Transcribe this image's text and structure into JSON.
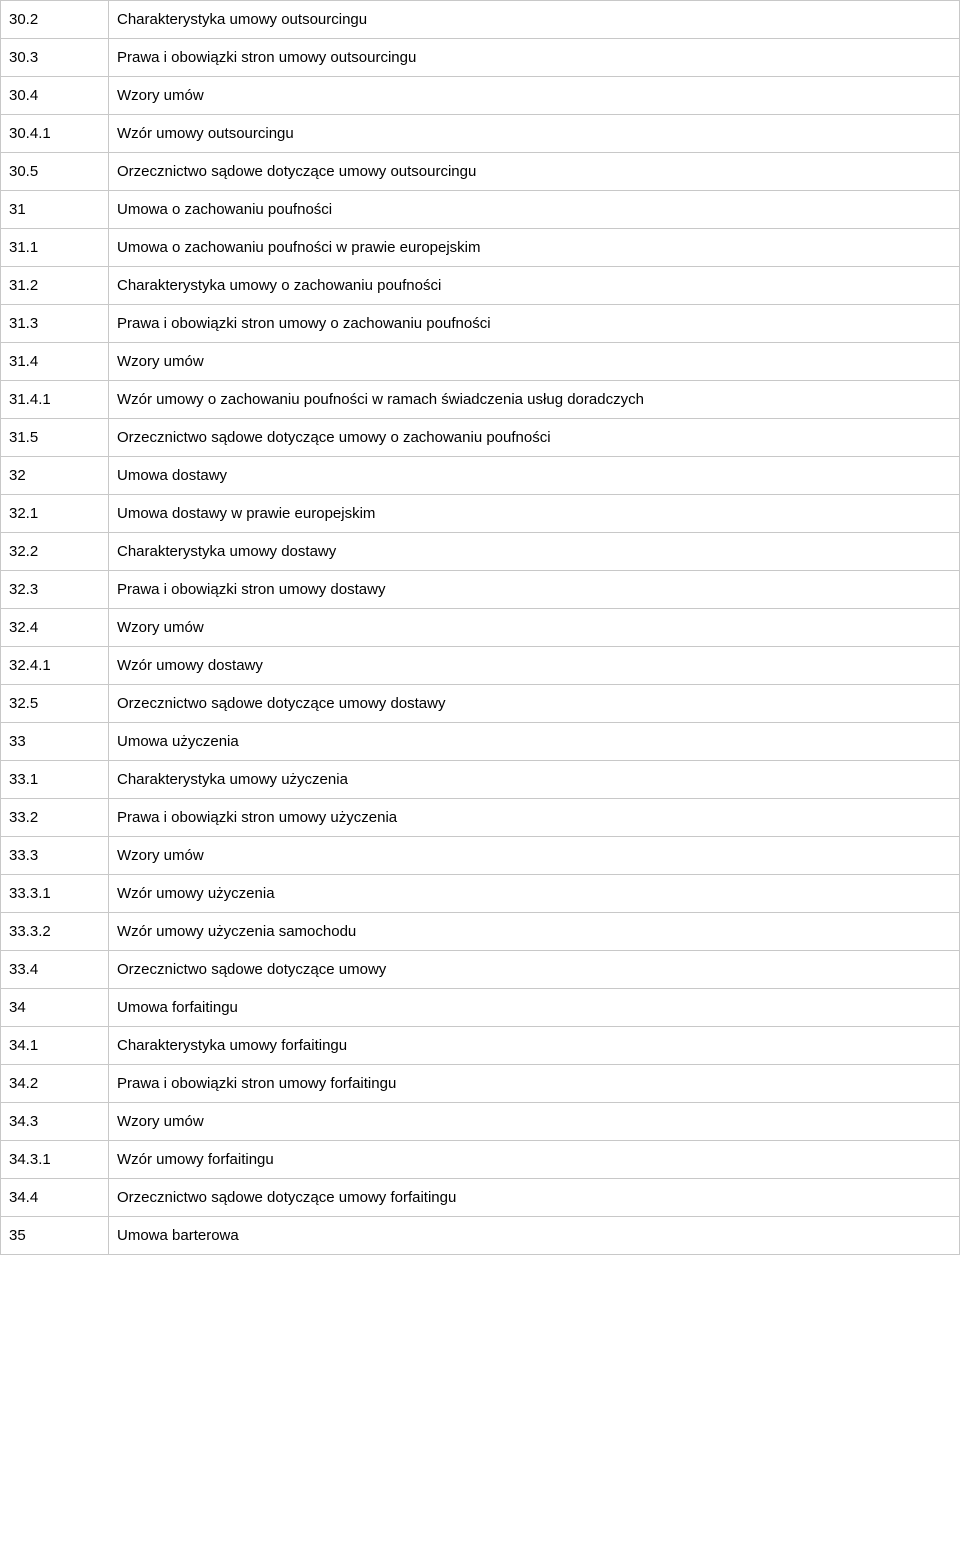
{
  "table": {
    "border_color": "#c8c8c8",
    "background_color": "#ffffff",
    "text_color": "#000000",
    "font_size": 15,
    "num_col_width": 108,
    "rows": [
      {
        "num": "30.2",
        "desc": "Charakterystyka umowy outsourcingu"
      },
      {
        "num": "30.3",
        "desc": "Prawa i obowiązki stron umowy outsourcingu"
      },
      {
        "num": "30.4",
        "desc": "Wzory umów"
      },
      {
        "num": "30.4.1",
        "desc": "Wzór umowy outsourcingu"
      },
      {
        "num": "30.5",
        "desc": "Orzecznictwo sądowe dotyczące umowy outsourcingu"
      },
      {
        "num": "31",
        "desc": "Umowa o zachowaniu poufności"
      },
      {
        "num": "31.1",
        "desc": "Umowa o zachowaniu poufności w prawie europejskim"
      },
      {
        "num": "31.2",
        "desc": "Charakterystyka umowy o zachowaniu poufności"
      },
      {
        "num": "31.3",
        "desc": "Prawa i obowiązki stron umowy o zachowaniu poufności"
      },
      {
        "num": "31.4",
        "desc": "Wzory umów"
      },
      {
        "num": "31.4.1",
        "desc": "Wzór umowy o zachowaniu poufności w ramach świadczenia usług doradczych"
      },
      {
        "num": "31.5",
        "desc": "Orzecznictwo sądowe dotyczące umowy o zachowaniu poufności"
      },
      {
        "num": "32",
        "desc": "Umowa dostawy"
      },
      {
        "num": "32.1",
        "desc": "Umowa dostawy w prawie europejskim"
      },
      {
        "num": "32.2",
        "desc": "Charakterystyka umowy dostawy"
      },
      {
        "num": "32.3",
        "desc": "Prawa i obowiązki stron umowy dostawy"
      },
      {
        "num": "32.4",
        "desc": "Wzory umów"
      },
      {
        "num": "32.4.1",
        "desc": "Wzór umowy dostawy"
      },
      {
        "num": "32.5",
        "desc": "Orzecznictwo sądowe dotyczące umowy dostawy"
      },
      {
        "num": "33",
        "desc": "Umowa użyczenia"
      },
      {
        "num": "33.1",
        "desc": "Charakterystyka umowy użyczenia"
      },
      {
        "num": "33.2",
        "desc": "Prawa i obowiązki stron umowy użyczenia"
      },
      {
        "num": "33.3",
        "desc": "Wzory umów"
      },
      {
        "num": "33.3.1",
        "desc": "Wzór umowy użyczenia"
      },
      {
        "num": "33.3.2",
        "desc": "Wzór umowy użyczenia samochodu"
      },
      {
        "num": "33.4",
        "desc": "Orzecznictwo sądowe dotyczące umowy"
      },
      {
        "num": "34",
        "desc": "Umowa forfaitingu"
      },
      {
        "num": "34.1",
        "desc": "Charakterystyka umowy forfaitingu"
      },
      {
        "num": "34.2",
        "desc": "Prawa i obowiązki stron umowy forfaitingu"
      },
      {
        "num": "34.3",
        "desc": "Wzory umów"
      },
      {
        "num": "34.3.1",
        "desc": "Wzór umowy forfaitingu"
      },
      {
        "num": "34.4",
        "desc": "Orzecznictwo sądowe dotyczące umowy forfaitingu"
      },
      {
        "num": "35",
        "desc": "Umowa barterowa"
      }
    ]
  }
}
